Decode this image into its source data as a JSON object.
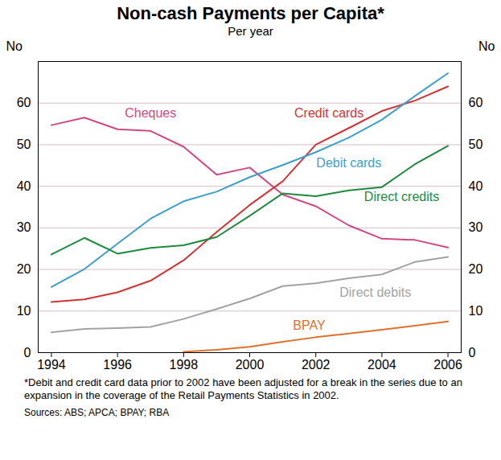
{
  "chart_data": {
    "type": "line",
    "title": "Non-cash Payments per Capita*",
    "subtitle": "Per year",
    "ylabel": "No",
    "x": [
      1994,
      1995,
      1996,
      1997,
      1998,
      1999,
      2000,
      2001,
      2002,
      2003,
      2004,
      2005,
      2006
    ],
    "xlim": [
      1993.6,
      2006.4
    ],
    "xticks": [
      1994,
      1996,
      1998,
      2000,
      2002,
      2004,
      2006
    ],
    "ylim": [
      0,
      70
    ],
    "yticks": [
      0,
      10,
      20,
      30,
      40,
      50,
      60
    ],
    "grid": true,
    "series": [
      {
        "name": "Cheques",
        "color": "#cf4a82",
        "values": [
          54.7,
          56.5,
          53.7,
          53.3,
          49.5,
          42.8,
          44.5,
          38.0,
          35.2,
          30.6,
          27.4,
          27.1,
          25.3
        ]
      },
      {
        "name": "Credit cards",
        "color": "#d03434",
        "values": [
          12.2,
          12.8,
          14.5,
          17.3,
          22.2,
          29.0,
          35.5,
          41.2,
          50.0,
          54.0,
          58.1,
          60.6,
          64.0
        ]
      },
      {
        "name": "Debit cards",
        "color": "#3d9fc9",
        "values": [
          15.8,
          20.1,
          26.2,
          32.2,
          36.4,
          38.7,
          42.2,
          45.1,
          48.2,
          51.7,
          56.0,
          61.7,
          67.2
        ]
      },
      {
        "name": "Direct credits",
        "color": "#1f8a3e",
        "values": [
          23.6,
          27.6,
          23.8,
          25.2,
          25.8,
          27.8,
          32.9,
          38.3,
          37.6,
          39.0,
          39.8,
          45.3,
          49.7
        ]
      },
      {
        "name": "Direct debits",
        "color": "#a3a3a3",
        "values": [
          4.9,
          5.7,
          5.9,
          6.2,
          8.1,
          10.5,
          13.0,
          16.0,
          16.7,
          17.9,
          18.8,
          21.8,
          23.0
        ]
      },
      {
        "name": "BPAY",
        "color": "#e0702e",
        "values": [
          null,
          null,
          null,
          null,
          0.2,
          0.7,
          1.4,
          2.6,
          3.7,
          4.6,
          5.5,
          6.5,
          7.5
        ]
      }
    ],
    "footnote": "*Debit and credit card data prior to 2002 have been adjusted for a break in the series due to an expansion in the coverage of the Retail Payments Statistics in 2002.",
    "sources": "Sources: ABS; APCA; BPAY; RBA"
  }
}
